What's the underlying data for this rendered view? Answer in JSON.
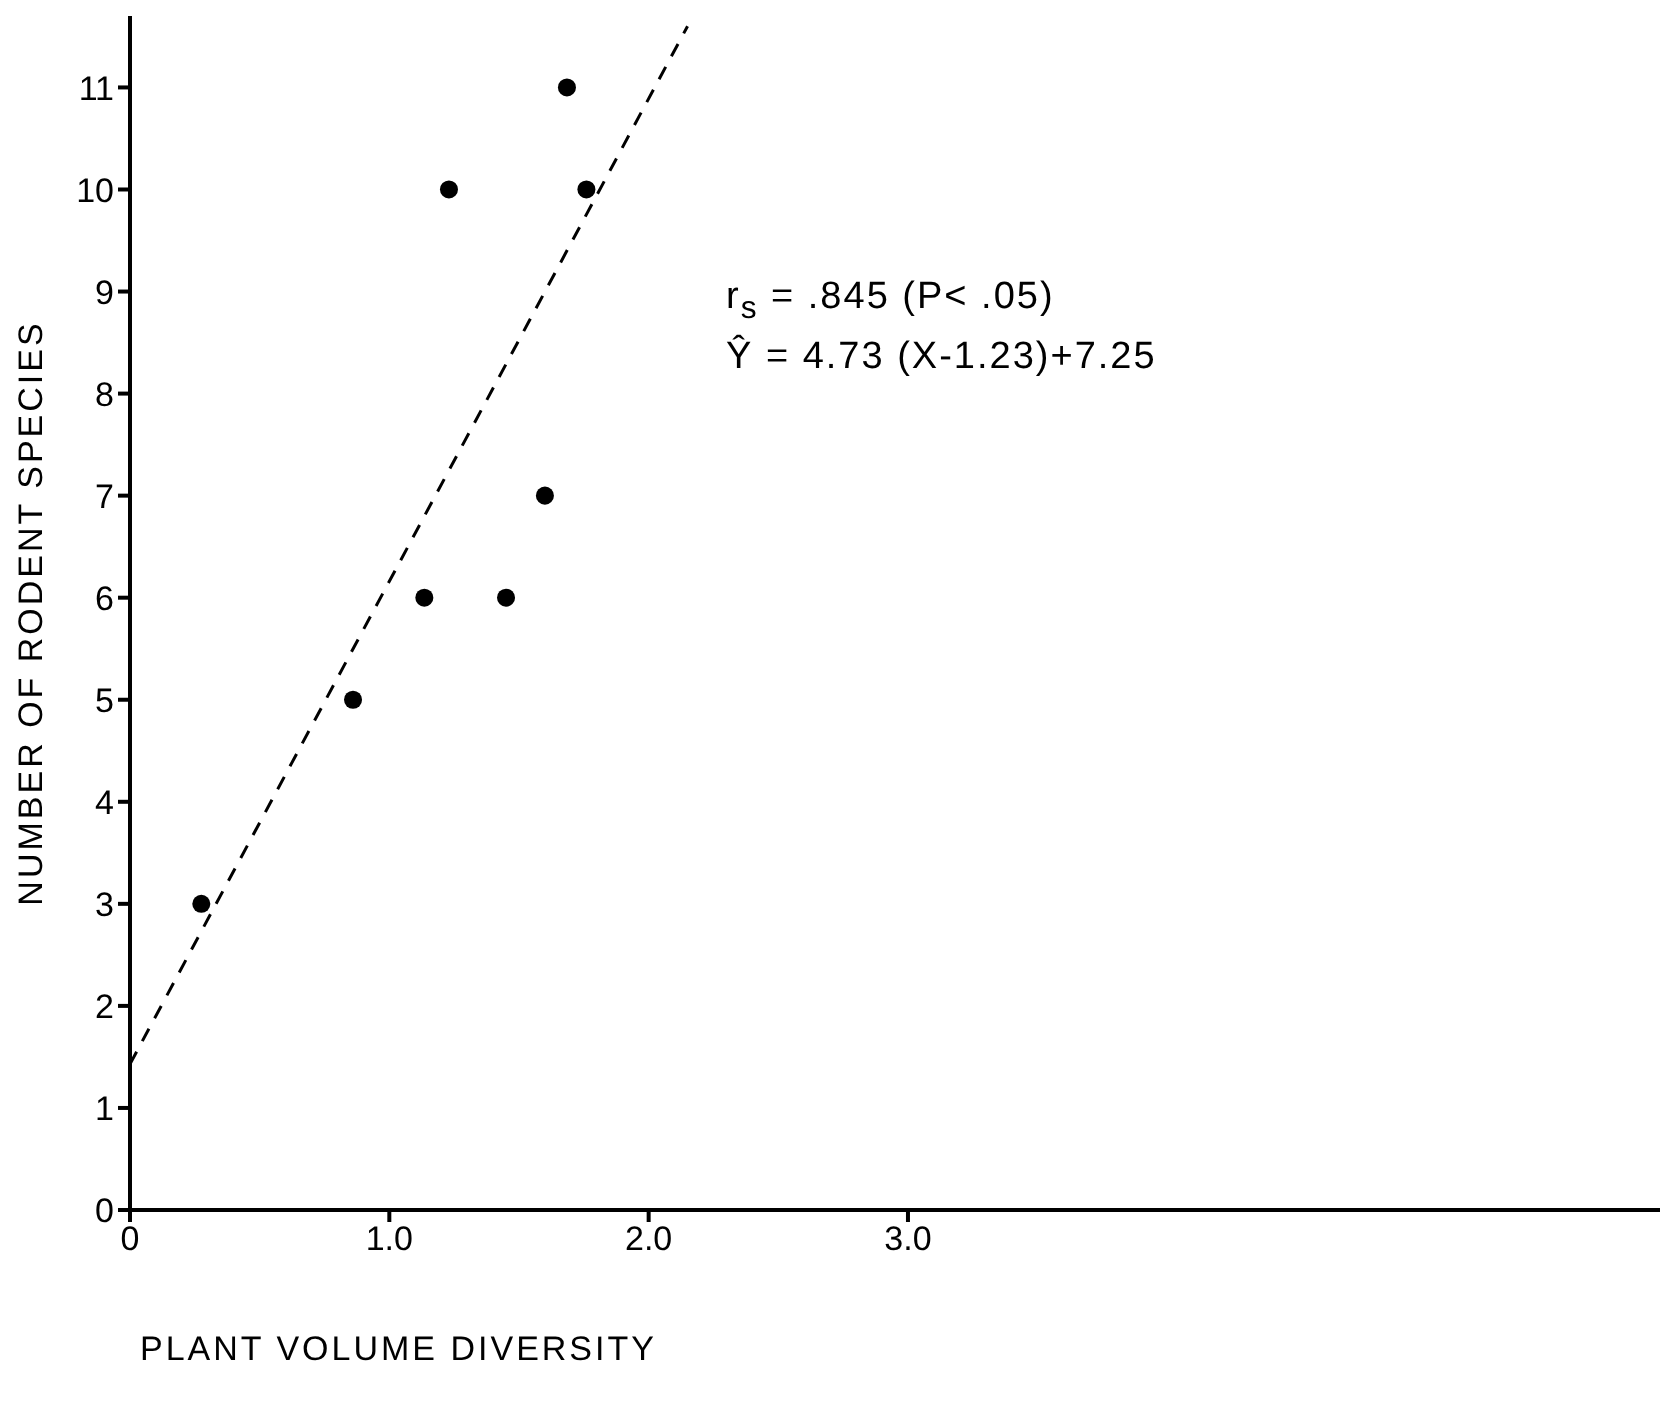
{
  "chart_data": {
    "type": "scatter",
    "xlabel": "PLANT VOLUME DIVERSITY",
    "ylabel": "NUMBER OF RODENT SPECIES",
    "xlim": [
      0,
      5.9
    ],
    "xticks": [
      0,
      {
        "value": 1,
        "label": "1.0"
      },
      {
        "value": 2,
        "label": "2.0"
      },
      {
        "value": 3,
        "label": "3.0"
      }
    ],
    "ylim": [
      0,
      11.7
    ],
    "yticks": [
      0,
      1,
      2,
      3,
      4,
      5,
      6,
      7,
      8,
      9,
      10,
      11
    ],
    "grid": false,
    "legend": false,
    "series": [
      {
        "type": "scatter",
        "color": "#000000",
        "marker": "circle",
        "x": [
          0.275,
          0.86,
          1.135,
          1.45,
          1.6,
          1.23,
          1.76,
          1.685
        ],
        "values": [
          3,
          5,
          6,
          6,
          7,
          10,
          10,
          11
        ]
      },
      {
        "type": "line",
        "color": "#000000",
        "marker": "none",
        "line_style": "dashed",
        "x": [
          0,
          2.15
        ],
        "values": [
          1.43,
          11.6
        ]
      }
    ],
    "annotations": [
      "r$_{s}$ = .845 (P< .05)",
      "Ŷ = 4.73 (X-1.23)+7.25"
    ]
  }
}
